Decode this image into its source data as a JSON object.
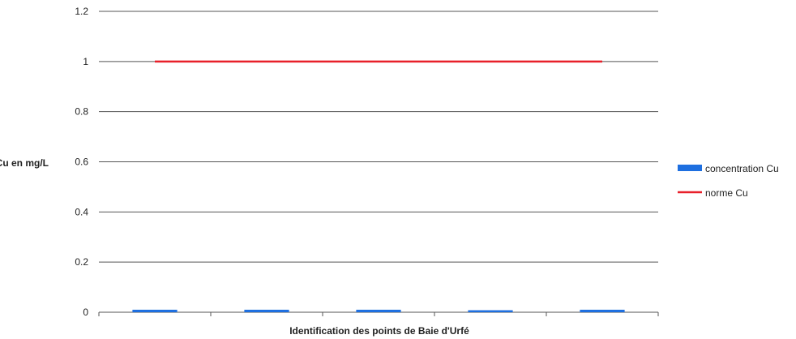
{
  "chart_data": {
    "type": "bar",
    "xlabel": "Identification des points de Baie d'Urfé",
    "ylabel": "Cu en mg/L",
    "ylim": [
      0,
      1.2
    ],
    "yticks": [
      "0",
      "0.2",
      "0.4",
      "0.6",
      "0.8",
      "1",
      "1.2"
    ],
    "categories": [
      "",
      "",
      "",
      "",
      ""
    ],
    "grid": true,
    "legend_position": "right",
    "series": [
      {
        "name": "concentration Cu",
        "kind": "bar",
        "color": "#1e6fe0",
        "values": [
          0.01,
          0.01,
          0.01,
          0.008,
          0.01
        ]
      },
      {
        "name": "norme Cu",
        "kind": "line",
        "color": "#e8202a",
        "values": [
          1,
          1,
          1,
          1,
          1
        ]
      }
    ]
  }
}
